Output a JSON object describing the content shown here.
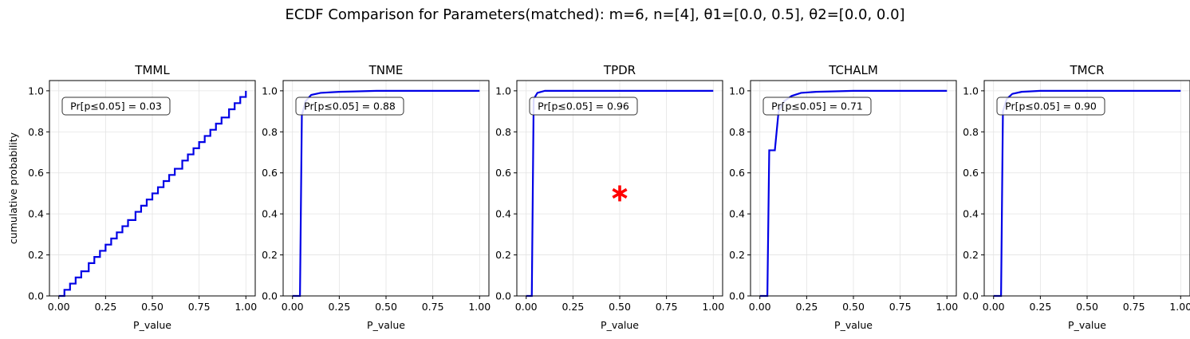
{
  "figure": {
    "title": "ECDF Comparison for Parameters(matched): m=6, n=[4], θ1=[0.0, 0.5], θ2=[0.0, 0.0]"
  },
  "chart_data": [
    {
      "type": "line",
      "title": "TMML",
      "xlabel": "P_value",
      "ylabel": "cumulative probability",
      "xlim": [
        -0.05,
        1.05
      ],
      "ylim": [
        0.0,
        1.05
      ],
      "xticks": [
        "0.00",
        "0.25",
        "0.50",
        "0.75",
        "1.00"
      ],
      "yticks": [
        "0.0",
        "0.2",
        "0.4",
        "0.6",
        "0.8",
        "1.0"
      ],
      "grid": true,
      "annotation": "Pr[p≤0.05] = 0.03",
      "line_color": "#0000e6",
      "series": [
        {
          "x": [
            0.0,
            0.03,
            0.06,
            0.09,
            0.12,
            0.16,
            0.19,
            0.22,
            0.25,
            0.28,
            0.31,
            0.34,
            0.37,
            0.41,
            0.44,
            0.47,
            0.5,
            0.53,
            0.56,
            0.59,
            0.62,
            0.66,
            0.69,
            0.72,
            0.75,
            0.78,
            0.81,
            0.84,
            0.87,
            0.91,
            0.94,
            0.97,
            1.0
          ],
          "y": [
            0.0,
            0.03,
            0.06,
            0.09,
            0.12,
            0.16,
            0.19,
            0.22,
            0.25,
            0.28,
            0.31,
            0.34,
            0.37,
            0.41,
            0.44,
            0.47,
            0.5,
            0.53,
            0.56,
            0.59,
            0.62,
            0.66,
            0.69,
            0.72,
            0.75,
            0.78,
            0.81,
            0.84,
            0.87,
            0.91,
            0.94,
            0.97,
            1.0
          ],
          "step": true
        }
      ]
    },
    {
      "type": "line",
      "title": "TNME",
      "xlabel": "P_value",
      "ylabel": "",
      "xlim": [
        -0.05,
        1.05
      ],
      "ylim": [
        0.0,
        1.05
      ],
      "xticks": [
        "0.00",
        "0.25",
        "0.50",
        "0.75",
        "1.00"
      ],
      "yticks": [
        "0.0",
        "0.2",
        "0.4",
        "0.6",
        "0.8",
        "1.0"
      ],
      "grid": true,
      "annotation": "Pr[p≤0.05] = 0.88",
      "line_color": "#0000e6",
      "series": [
        {
          "x": [
            0.0,
            0.04,
            0.05,
            0.07,
            0.1,
            0.15,
            0.25,
            0.45,
            1.0
          ],
          "y": [
            0.0,
            0.0,
            0.88,
            0.95,
            0.98,
            0.99,
            0.995,
            1.0,
            1.0
          ]
        }
      ]
    },
    {
      "type": "line",
      "title": "TPDR",
      "xlabel": "P_value",
      "ylabel": "",
      "xlim": [
        -0.05,
        1.05
      ],
      "ylim": [
        0.0,
        1.05
      ],
      "xticks": [
        "0.00",
        "0.25",
        "0.50",
        "0.75",
        "1.00"
      ],
      "yticks": [
        "0.0",
        "0.2",
        "0.4",
        "0.6",
        "0.8",
        "1.0"
      ],
      "grid": true,
      "annotation": "Pr[p≤0.05] = 0.96",
      "line_color": "#0000e6",
      "marker": {
        "symbol": "*",
        "x": 0.5,
        "y": 0.5,
        "color": "#ff0000"
      },
      "series": [
        {
          "x": [
            0.0,
            0.03,
            0.04,
            0.06,
            0.1,
            0.2,
            1.0
          ],
          "y": [
            0.0,
            0.0,
            0.96,
            0.99,
            1.0,
            1.0,
            1.0
          ]
        }
      ]
    },
    {
      "type": "line",
      "title": "TCHALM",
      "xlabel": "P_value",
      "ylabel": "",
      "xlim": [
        -0.05,
        1.05
      ],
      "ylim": [
        0.0,
        1.05
      ],
      "xticks": [
        "0.00",
        "0.25",
        "0.50",
        "0.75",
        "1.00"
      ],
      "yticks": [
        "0.0",
        "0.2",
        "0.4",
        "0.6",
        "0.8",
        "1.0"
      ],
      "grid": true,
      "annotation": "Pr[p≤0.05] = 0.71",
      "line_color": "#0000e6",
      "series": [
        {
          "x": [
            0.0,
            0.04,
            0.05,
            0.08,
            0.1,
            0.13,
            0.17,
            0.22,
            0.3,
            0.5,
            1.0
          ],
          "y": [
            0.0,
            0.0,
            0.71,
            0.71,
            0.9,
            0.95,
            0.975,
            0.99,
            0.995,
            1.0,
            1.0
          ]
        }
      ]
    },
    {
      "type": "line",
      "title": "TMCR",
      "xlabel": "P_value",
      "ylabel": "",
      "xlim": [
        -0.05,
        1.05
      ],
      "ylim": [
        0.0,
        1.05
      ],
      "xticks": [
        "0.00",
        "0.25",
        "0.50",
        "0.75",
        "1.00"
      ],
      "yticks": [
        "0.0",
        "0.2",
        "0.4",
        "0.6",
        "0.8",
        "1.0"
      ],
      "grid": true,
      "annotation": "Pr[p≤0.05] = 0.90",
      "line_color": "#0000e6",
      "series": [
        {
          "x": [
            0.0,
            0.04,
            0.05,
            0.07,
            0.1,
            0.15,
            0.25,
            0.4,
            1.0
          ],
          "y": [
            0.0,
            0.0,
            0.9,
            0.96,
            0.985,
            0.995,
            1.0,
            1.0,
            1.0
          ]
        }
      ]
    }
  ]
}
